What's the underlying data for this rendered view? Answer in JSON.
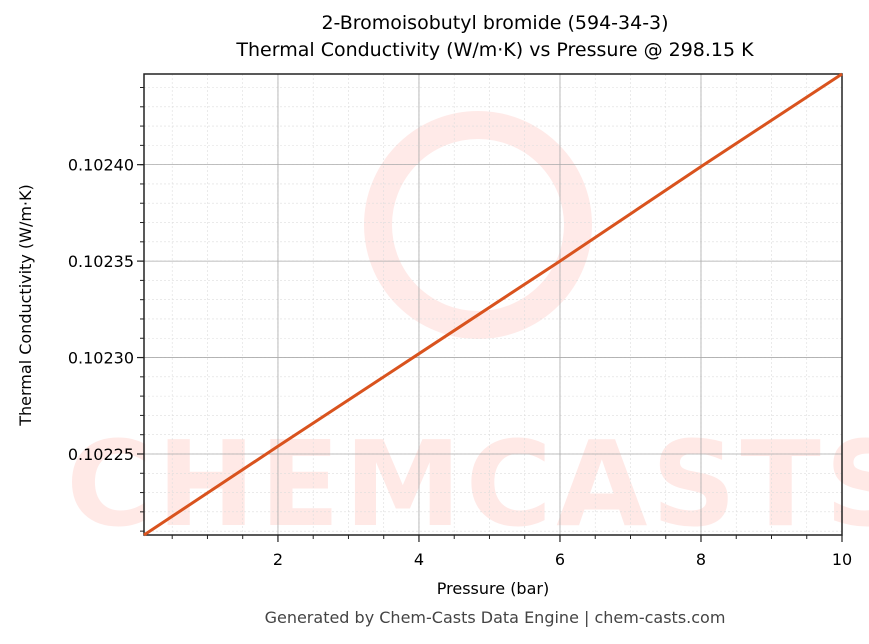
{
  "chart_data": {
    "type": "line",
    "title": "2-Bromoisobutyl bromide (594-34-3)",
    "subtitle": "Thermal Conductivity (W/m·K) vs Pressure @ 298.15 K",
    "xlabel": "Pressure (bar)",
    "ylabel": "Thermal Conductivity (W/m·K)",
    "xlim": [
      0.1,
      10
    ],
    "ylim": [
      0.102208,
      0.102447
    ],
    "xticks": [
      2,
      4,
      6,
      8,
      10
    ],
    "yticks": [
      0.10225,
      0.1023,
      0.10235,
      0.1024
    ],
    "ytick_labels": [
      "0.10225",
      "0.10230",
      "0.10235",
      "0.10240"
    ],
    "grid": true,
    "series": [
      {
        "name": "Thermal Conductivity",
        "color": "#d9531e",
        "x": [
          0.1,
          2,
          4,
          6,
          8,
          10
        ],
        "y": [
          0.102208,
          0.102254,
          0.102302,
          0.10235,
          0.102399,
          0.102447
        ]
      }
    ]
  },
  "footer": "Generated by Chem-Casts Data Engine | chem-casts.com",
  "watermark": "CHEMCASTS"
}
